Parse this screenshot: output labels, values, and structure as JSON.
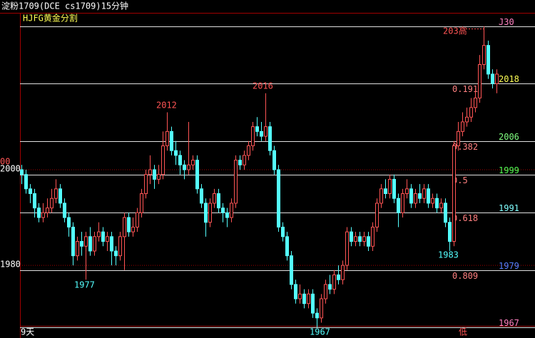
{
  "chart_data": {
    "type": "candlestick",
    "title": "淀粉1709(DCE cs1709)15分钟",
    "indicator": "HJFG黄金分割",
    "period_label": "9天",
    "up_color": "#ff5454",
    "down_color": "#54ffff",
    "ylim": [
      1964.8,
      2035.5
    ],
    "yticks": [
      2000,
      1980
    ],
    "open": [
      2000,
      1999,
      1996,
      1995,
      1992,
      1990,
      1991,
      1992,
      1994,
      1996,
      1993,
      1990,
      1988,
      1982,
      1985,
      1984,
      1986,
      1983,
      1986,
      1987,
      1985,
      1986,
      1983,
      1982,
      1986,
      1990,
      1987,
      1988,
      1991,
      1995,
      1999,
      2000,
      1998,
      1999,
      2005,
      2008,
      2004,
      2003,
      2001,
      2000,
      2001,
      2002,
      1996,
      1993,
      1989,
      1993,
      1995,
      1992,
      1991,
      1990,
      1993,
      2002,
      2001,
      2003,
      2005,
      2009,
      2008,
      2007,
      2009,
      2004,
      2000,
      1988,
      1986,
      1982,
      1976,
      1973,
      1974,
      1972,
      1974,
      1970,
      1969,
      1973,
      1976,
      1975,
      1978,
      1977,
      1980,
      1987,
      1985,
      1986,
      1985,
      1986,
      1984,
      1988,
      1993,
      1996,
      1995,
      1998,
      1994,
      1991,
      1995,
      1996,
      1993,
      1995,
      1994,
      1996,
      1993,
      1994,
      1992,
      1993,
      1989,
      1985,
      2005,
      2008,
      2010,
      2011,
      2013,
      2015,
      2022,
      2026,
      2020,
      2018
    ],
    "high": [
      2001,
      2000,
      1997,
      1996,
      1993,
      1993,
      1994,
      1996,
      1998,
      1997,
      1994,
      1991,
      1989,
      1986,
      1987,
      1987,
      1988,
      1987,
      1989,
      1988,
      1987,
      1987,
      1984,
      1987,
      1991,
      1991,
      1990,
      1992,
      1996,
      2000,
      2003,
      2001,
      2001,
      2008,
      2012,
      2009,
      2006,
      2004,
      2002,
      2010,
      2003,
      2003,
      1997,
      1994,
      1994,
      1996,
      1996,
      1993,
      1992,
      1994,
      2003,
      2003,
      2004,
      2006,
      2010,
      2011,
      2010,
      2016,
      2010,
      2005,
      2001,
      1989,
      1987,
      1983,
      1977,
      1976,
      1975,
      1975,
      1975,
      1971,
      1974,
      1977,
      1978,
      1979,
      1980,
      1981,
      1988,
      1988,
      1987,
      1987,
      1987,
      1987,
      1989,
      1994,
      1997,
      1998,
      1999,
      1999,
      1995,
      1996,
      1998,
      1997,
      1996,
      1997,
      1997,
      1997,
      1995,
      1995,
      1994,
      1994,
      1990,
      2006,
      2010,
      2012,
      2013,
      2015,
      2017,
      2024,
      2030,
      2027,
      2021,
      2021
    ],
    "low": [
      1997,
      1995,
      1993,
      1990,
      1989,
      1989,
      1990,
      1991,
      1993,
      1992,
      1989,
      1986,
      1980,
      1981,
      1982,
      1977,
      1982,
      1982,
      1985,
      1984,
      1983,
      1980,
      1980,
      1981,
      1979,
      1986,
      1986,
      1987,
      1990,
      1994,
      1997,
      1996,
      1997,
      1998,
      2004,
      2003,
      2001,
      1999,
      1998,
      1999,
      2000,
      1995,
      1992,
      1986,
      1988,
      1992,
      1991,
      1989,
      1988,
      1989,
      1992,
      2000,
      2000,
      2002,
      2004,
      2007,
      2006,
      2006,
      2003,
      1999,
      1987,
      1985,
      1981,
      1975,
      1972,
      1972,
      1971,
      1971,
      1969,
      1967,
      1968,
      1972,
      1974,
      1974,
      1976,
      1976,
      1979,
      1984,
      1984,
      1984,
      1984,
      1983,
      1983,
      1987,
      1992,
      1994,
      1994,
      1993,
      1988,
      1990,
      1994,
      1992,
      1992,
      1993,
      1993,
      1992,
      1992,
      1991,
      1991,
      1988,
      1983,
      1984,
      2004,
      2007,
      2009,
      2010,
      2012,
      2014,
      2021,
      2019,
      2017,
      2016
    ],
    "close": [
      1999,
      1996,
      1995,
      1992,
      1990,
      1991,
      1992,
      1994,
      1996,
      1993,
      1990,
      1988,
      1982,
      1985,
      1984,
      1986,
      1983,
      1986,
      1987,
      1985,
      1986,
      1983,
      1982,
      1986,
      1990,
      1987,
      1988,
      1991,
      1995,
      1999,
      2000,
      1998,
      1999,
      2005,
      2008,
      2004,
      2003,
      2001,
      2000,
      2001,
      2002,
      1996,
      1993,
      1989,
      1993,
      1995,
      1992,
      1991,
      1990,
      1993,
      2002,
      2001,
      2003,
      2005,
      2009,
      2008,
      2007,
      2009,
      2004,
      2000,
      1988,
      1986,
      1982,
      1976,
      1973,
      1974,
      1972,
      1974,
      1970,
      1969,
      1973,
      1976,
      1975,
      1978,
      1977,
      1980,
      1987,
      1985,
      1986,
      1985,
      1986,
      1984,
      1988,
      1993,
      1996,
      1995,
      1998,
      1994,
      1991,
      1995,
      1996,
      1993,
      1995,
      1994,
      1996,
      1993,
      1994,
      1992,
      1993,
      1989,
      1985,
      2005,
      2008,
      2010,
      2011,
      2013,
      2015,
      2022,
      2026,
      2020,
      2018,
      2020
    ],
    "levels": [
      {
        "value": 2030,
        "label": "J30",
        "color": "#ff80c0"
      },
      {
        "value": 2018,
        "label": "2018",
        "color": "#ffff54",
        "ratio": 0.191
      },
      {
        "value": 2006,
        "label": "2006",
        "color": "#80ff80",
        "ratio": 0.382
      },
      {
        "value": 1999,
        "label": "1999",
        "color": "#54ff54",
        "ratio": 0.5
      },
      {
        "value": 1991,
        "label": "1991",
        "color": "#80ffff",
        "ratio": 0.618
      },
      {
        "value": 1979,
        "label": "1979",
        "color": "#5480ff",
        "ratio": 0.809
      },
      {
        "value": 1967,
        "label": "1967",
        "color": "#ff80c0"
      }
    ],
    "annotations": [
      "1977",
      "2012",
      "2016",
      "1967",
      "1983",
      "203高",
      "低",
      "00"
    ]
  }
}
